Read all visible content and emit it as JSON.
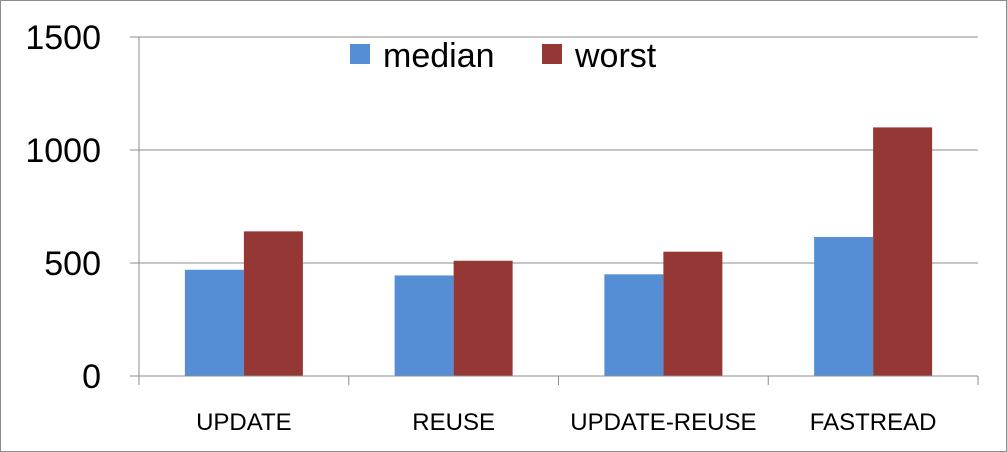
{
  "chart_data": {
    "type": "bar",
    "categories": [
      "UPDATE",
      "REUSE",
      "UPDATE-REUSE",
      "FASTREAD"
    ],
    "series": [
      {
        "name": "median",
        "values": [
          470,
          445,
          450,
          615
        ],
        "color": "#558ed5"
      },
      {
        "name": "worst",
        "values": [
          640,
          510,
          550,
          1100
        ],
        "color": "#953735"
      }
    ],
    "yticks": [
      "0",
      "500",
      "1000",
      "1500"
    ],
    "ylim": [
      0,
      1500
    ],
    "grid": true,
    "legend_position": "top-center"
  }
}
